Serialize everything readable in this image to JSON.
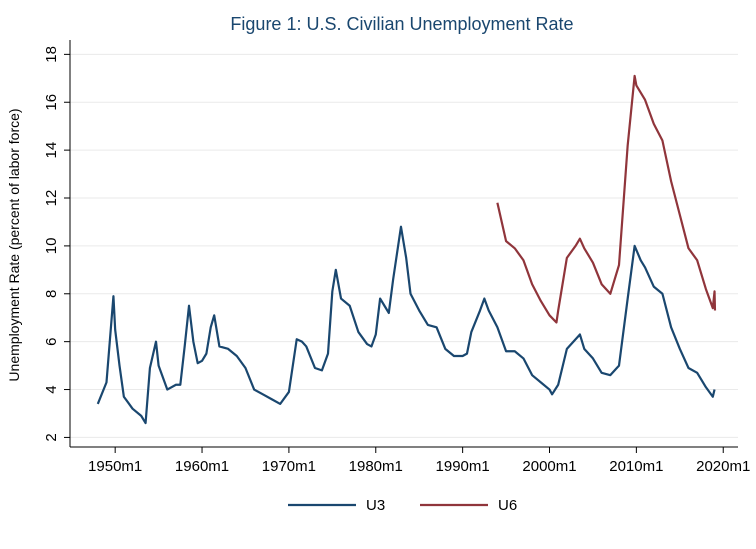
{
  "chart_data": {
    "type": "line",
    "title": "Figure 1: U.S. Civilian Unemployment Rate",
    "y_label": "Unemployment Rate (percent of labor force)",
    "xlim": [
      1944.8,
      2021.7
    ],
    "ylim": [
      1.6,
      18.6
    ],
    "xticks": [
      {
        "value": 1950,
        "label": "1950m1"
      },
      {
        "value": 1960,
        "label": "1960m1"
      },
      {
        "value": 1970,
        "label": "1970m1"
      },
      {
        "value": 1980,
        "label": "1980m1"
      },
      {
        "value": 1990,
        "label": "1990m1"
      },
      {
        "value": 2000,
        "label": "2000m1"
      },
      {
        "value": 2010,
        "label": "2010m1"
      },
      {
        "value": 2020,
        "label": "2020m1"
      }
    ],
    "yticks": [
      2,
      4,
      6,
      8,
      10,
      12,
      14,
      16,
      18
    ],
    "grid": true,
    "legend": "bottom",
    "series": [
      {
        "name": "U3",
        "color": "#1a476f",
        "x": [
          1948.0,
          1949.0,
          1949.8,
          1950.0,
          1950.5,
          1951.0,
          1952.0,
          1953.0,
          1953.5,
          1954.0,
          1954.7,
          1955.0,
          1956.0,
          1957.0,
          1957.5,
          1958.0,
          1958.5,
          1959.0,
          1959.5,
          1960.0,
          1960.5,
          1961.0,
          1961.4,
          1962.0,
          1963.0,
          1964.0,
          1965.0,
          1966.0,
          1967.0,
          1968.0,
          1969.0,
          1970.0,
          1970.9,
          1971.5,
          1972.0,
          1973.0,
          1973.8,
          1974.5,
          1975.0,
          1975.4,
          1976.0,
          1977.0,
          1978.0,
          1979.0,
          1979.5,
          1980.0,
          1980.5,
          1981.0,
          1981.5,
          1982.0,
          1982.9,
          1983.5,
          1984.0,
          1985.0,
          1986.0,
          1987.0,
          1988.0,
          1989.0,
          1990.0,
          1990.5,
          1991.0,
          1992.0,
          1992.5,
          1993.0,
          1994.0,
          1995.0,
          1996.0,
          1997.0,
          1998.0,
          1999.0,
          2000.0,
          2000.3,
          2001.0,
          2002.0,
          2003.5,
          2004.0,
          2005.0,
          2006.0,
          2007.0,
          2008.0,
          2009.0,
          2009.8,
          2010.5,
          2011.0,
          2012.0,
          2013.0,
          2014.0,
          2015.0,
          2016.0,
          2017.0,
          2018.0,
          2018.8,
          2019.0
        ],
        "values": [
          3.4,
          4.3,
          7.9,
          6.5,
          5.0,
          3.7,
          3.2,
          2.9,
          2.6,
          4.9,
          6.0,
          5.0,
          4.0,
          4.2,
          4.2,
          5.8,
          7.5,
          6.0,
          5.1,
          5.2,
          5.5,
          6.6,
          7.1,
          5.8,
          5.7,
          5.4,
          4.9,
          4.0,
          3.8,
          3.6,
          3.4,
          3.9,
          6.1,
          6.0,
          5.8,
          4.9,
          4.8,
          5.5,
          8.1,
          9.0,
          7.8,
          7.5,
          6.4,
          5.9,
          5.8,
          6.3,
          7.8,
          7.5,
          7.2,
          8.6,
          10.8,
          9.5,
          8.0,
          7.3,
          6.7,
          6.6,
          5.7,
          5.4,
          5.4,
          5.5,
          6.4,
          7.3,
          7.8,
          7.3,
          6.6,
          5.6,
          5.6,
          5.3,
          4.6,
          4.3,
          4.0,
          3.8,
          4.2,
          5.7,
          6.3,
          5.7,
          5.3,
          4.7,
          4.6,
          5.0,
          7.8,
          10.0,
          9.4,
          9.1,
          8.3,
          8.0,
          6.6,
          5.7,
          4.9,
          4.7,
          4.1,
          3.7,
          4.0
        ]
      },
      {
        "name": "U6",
        "color": "#90353b",
        "x": [
          1994.0,
          1995.0,
          1996.0,
          1997.0,
          1998.0,
          1999.0,
          2000.0,
          2000.8,
          2001.0,
          2002.0,
          2003.0,
          2003.5,
          2004.0,
          2005.0,
          2006.0,
          2007.0,
          2008.0,
          2009.0,
          2009.8,
          2010.0,
          2011.0,
          2012.0,
          2013.0,
          2014.0,
          2015.0,
          2016.0,
          2017.0,
          2018.0,
          2018.8,
          2019.0,
          2019.05
        ],
        "values": [
          11.8,
          10.2,
          9.9,
          9.4,
          8.4,
          7.7,
          7.1,
          6.8,
          7.3,
          9.5,
          10.0,
          10.3,
          9.9,
          9.3,
          8.4,
          8.0,
          9.2,
          14.2,
          17.1,
          16.7,
          16.1,
          15.1,
          14.4,
          12.7,
          11.3,
          9.9,
          9.4,
          8.2,
          7.4,
          8.1,
          7.3
        ]
      }
    ]
  }
}
